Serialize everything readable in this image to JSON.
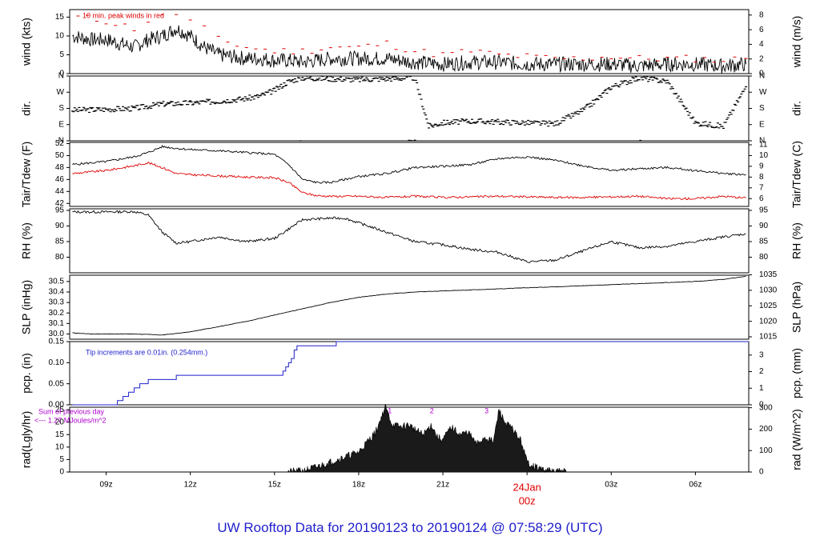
{
  "title": "UW Rooftop Data for 20190123  to  20190124 @ 07:58:29  (UTC)",
  "colors": {
    "black": "#000000",
    "red": "#dd0000",
    "blue": "#1f1fcc",
    "purple": "#b000d0",
    "title_blue": "#1f1fcc"
  },
  "x_axis": {
    "range_hours": [
      7.7,
      31.9
    ],
    "ticks": [
      {
        "hour": 9,
        "label": "09z"
      },
      {
        "hour": 12,
        "label": "12z"
      },
      {
        "hour": 15,
        "label": "15z"
      },
      {
        "hour": 18,
        "label": "18z"
      },
      {
        "hour": 21,
        "label": "21z"
      },
      {
        "hour": 24,
        "label": "00z"
      },
      {
        "hour": 27,
        "label": "03z"
      },
      {
        "hour": 30,
        "label": "06z"
      }
    ],
    "date_marker": {
      "hour": 24,
      "date_label": "24Jan",
      "time_label": "00z"
    }
  },
  "chart_data": [
    {
      "id": "wind",
      "type": "line",
      "ylabel_left": "wind (kts)",
      "ylabel_right": "wind (m/s)",
      "ylim": [
        0,
        17
      ],
      "left_ticks": [
        0,
        5,
        10,
        15
      ],
      "right_ticks": [
        0,
        2,
        4,
        6,
        8
      ],
      "right_scale": 0.5144,
      "annotation": "10 min. peak winds in red",
      "series": [
        {
          "role": "speed",
          "x": [
            7.8,
            8.5,
            9.0,
            9.5,
            10.0,
            10.5,
            11.0,
            11.5,
            12.0,
            12.5,
            13.0,
            13.5,
            14.0,
            14.5,
            15.0,
            15.5,
            16.0,
            17.0,
            18.0,
            19.0,
            20.0,
            21.0,
            22.0,
            23.0,
            24.0,
            25.0,
            26.0,
            27.0,
            28.0,
            29.0,
            30.0,
            31.0,
            31.8
          ],
          "values": [
            10,
            9,
            9,
            8,
            7,
            9,
            10,
            12,
            10,
            7,
            5,
            4.5,
            4,
            4,
            3.5,
            3.5,
            3,
            4,
            4,
            4,
            3,
            2.5,
            3,
            3,
            2.5,
            2.5,
            2.5,
            2.5,
            2,
            2.5,
            2.5,
            2,
            2.5
          ]
        },
        {
          "role": "peak",
          "x": [
            8.0,
            9.0,
            10.0,
            10.5,
            11.0,
            11.5,
            12.0,
            12.5,
            13.0,
            14.0,
            15.0,
            16.0,
            17.0,
            18.0,
            19.0,
            20.0,
            21.0,
            22.0,
            23.0,
            24.0,
            25.0,
            26.0,
            27.0,
            28.0,
            29.0,
            30.0,
            31.0,
            31.8
          ],
          "values": [
            15,
            14,
            12,
            14,
            15,
            16,
            14,
            12,
            9,
            7,
            6,
            6,
            7,
            7,
            8,
            6,
            5,
            6,
            5,
            4.5,
            4,
            4,
            4.5,
            4,
            4,
            4,
            3.5,
            4
          ]
        }
      ]
    },
    {
      "id": "dir",
      "type": "scatter",
      "ylabel_left": "dir.",
      "ylabel_right": "dir.",
      "ylim": [
        0,
        360
      ],
      "left_ticks": [
        {
          "v": 0,
          "label": "N"
        },
        {
          "v": 90,
          "label": "E"
        },
        {
          "v": 180,
          "label": "S"
        },
        {
          "v": 270,
          "label": "W"
        },
        {
          "v": 360,
          "label": "N"
        }
      ],
      "right_ticks": [
        {
          "v": 0,
          "label": "N"
        },
        {
          "v": 90,
          "label": "E"
        },
        {
          "v": 180,
          "label": "S"
        },
        {
          "v": 270,
          "label": "W"
        },
        {
          "v": 360,
          "label": "N"
        }
      ],
      "x": [
        7.8,
        9.0,
        10.0,
        11.0,
        12.0,
        13.0,
        14.0,
        14.5,
        15.0,
        15.5,
        16.0,
        17.0,
        18.0,
        19.0,
        20.0,
        20.5,
        21.0,
        22.0,
        23.0,
        24.0,
        25.0,
        26.0,
        26.5,
        27.0,
        28.0,
        29.0,
        30.0,
        31.0,
        31.8
      ],
      "values": [
        170,
        175,
        180,
        205,
        210,
        220,
        235,
        250,
        280,
        330,
        350,
        345,
        340,
        345,
        350,
        80,
        100,
        110,
        105,
        100,
        95,
        170,
        230,
        300,
        350,
        330,
        100,
        80,
        300
      ]
    },
    {
      "id": "temp",
      "type": "line",
      "ylabel_left": "Tair/Tdew (F)",
      "ylabel_right": "Tair/Tdew (C)",
      "ylim": [
        41.5,
        52.2
      ],
      "left_ticks": [
        42,
        44,
        46,
        48,
        50,
        52
      ],
      "right_ticks": [
        6,
        7,
        8,
        9,
        10,
        11
      ],
      "series": [
        {
          "role": "air",
          "x": [
            7.8,
            9.0,
            10.0,
            10.5,
            11.0,
            11.5,
            12.0,
            13.0,
            14.0,
            15.0,
            15.5,
            16.0,
            16.5,
            17.0,
            18.0,
            19.0,
            20.0,
            21.0,
            22.0,
            23.0,
            24.0,
            25.0,
            26.0,
            27.0,
            28.0,
            29.0,
            30.0,
            31.0,
            31.8
          ],
          "values": [
            48.5,
            49,
            49.8,
            50.5,
            51.5,
            51.2,
            51,
            50.8,
            50.5,
            50.2,
            48.5,
            46,
            45.5,
            45.5,
            46.5,
            47,
            48,
            48.2,
            48.5,
            49.5,
            49.8,
            49.2,
            48.3,
            47.5,
            47.8,
            48,
            47.5,
            47,
            46.8
          ]
        },
        {
          "role": "dew",
          "x": [
            7.8,
            9.0,
            10.0,
            10.5,
            11.0,
            11.5,
            12.0,
            13.0,
            14.0,
            15.0,
            15.5,
            16.0,
            16.5,
            17.0,
            18.0,
            19.0,
            20.0,
            21.0,
            22.0,
            23.0,
            24.0,
            25.0,
            26.0,
            27.0,
            28.0,
            29.0,
            30.0,
            31.0,
            31.8
          ],
          "values": [
            47,
            47.5,
            48.3,
            48.8,
            48,
            47,
            46.8,
            46.6,
            46.4,
            46.3,
            45.5,
            43.8,
            43.3,
            43.2,
            43.2,
            43,
            43.2,
            43,
            43.1,
            43.2,
            43.1,
            43,
            43,
            43.1,
            43.2,
            42.8,
            42.8,
            43.2,
            42.9
          ]
        }
      ]
    },
    {
      "id": "rh",
      "type": "line",
      "ylabel_left": "RH (%)",
      "ylabel_right": "RH (%)",
      "ylim": [
        75,
        95.5
      ],
      "left_ticks": [
        80,
        85,
        90,
        95
      ],
      "right_ticks": [
        80,
        85,
        90,
        95
      ],
      "x": [
        7.8,
        9.0,
        10.0,
        10.5,
        11.0,
        11.5,
        12.0,
        13.0,
        14.0,
        15.0,
        15.5,
        16.0,
        17.0,
        17.5,
        18.0,
        19.0,
        20.0,
        21.0,
        22.0,
        23.0,
        24.0,
        25.0,
        26.0,
        27.0,
        28.0,
        29.0,
        30.0,
        31.0,
        31.8
      ],
      "values": [
        94.5,
        94.5,
        94.6,
        93.5,
        88,
        84.5,
        85,
        86.5,
        85,
        86,
        89,
        92,
        92.5,
        92.5,
        91,
        88,
        85,
        84,
        82.5,
        81.5,
        78.5,
        79,
        82,
        85,
        83,
        83.5,
        85,
        86.5,
        87.5
      ]
    },
    {
      "id": "slp",
      "type": "line",
      "ylabel_left": "SLP (inHg)",
      "ylabel_right": "SLP (hPa)",
      "ylim": [
        29.95,
        30.56
      ],
      "left_ticks": [
        30.0,
        30.1,
        30.2,
        30.3,
        30.4,
        30.5
      ],
      "left_tick_labels": [
        "30.0",
        "30.1",
        "30.2",
        "30.3",
        "30.4",
        "30.5"
      ],
      "right_ticks": [
        1015,
        1020,
        1025,
        1030,
        1035
      ],
      "right_scale": 33.8639,
      "x": [
        7.8,
        8.5,
        9.0,
        10.0,
        11.0,
        12.0,
        13.0,
        14.0,
        15.0,
        16.0,
        17.0,
        18.0,
        19.0,
        20.0,
        21.0,
        22.0,
        23.0,
        24.0,
        25.0,
        26.0,
        27.0,
        28.0,
        29.0,
        30.0,
        31.0,
        31.8
      ],
      "values": [
        30.01,
        30.0,
        30.0,
        30.0,
        29.99,
        30.02,
        30.07,
        30.12,
        30.18,
        30.24,
        30.3,
        30.35,
        30.38,
        30.4,
        30.41,
        30.42,
        30.43,
        30.44,
        30.45,
        30.46,
        30.47,
        30.48,
        30.49,
        30.5,
        30.52,
        30.55
      ]
    },
    {
      "id": "pcp",
      "type": "step",
      "ylabel_left": "pcp. (in)",
      "ylabel_right": "pcp. (mm)",
      "ylim": [
        0,
        0.15
      ],
      "left_ticks": [
        0.0,
        0.05,
        0.1,
        0.15
      ],
      "left_tick_labels": [
        "0.00",
        "0.05",
        "0.10",
        "0.15"
      ],
      "right_ticks": [
        0,
        1,
        2,
        3
      ],
      "right_scale": 25.4,
      "annotation": "Tip increments are 0.01in. (0.254mm.)",
      "x": [
        7.8,
        9.4,
        9.6,
        9.8,
        10.0,
        10.2,
        10.5,
        11.5,
        15.3,
        15.4,
        15.5,
        15.6,
        15.7,
        15.8,
        17.2,
        31.9
      ],
      "values": [
        0.0,
        0.01,
        0.02,
        0.03,
        0.04,
        0.05,
        0.06,
        0.07,
        0.08,
        0.09,
        0.1,
        0.11,
        0.13,
        0.14,
        0.15,
        0.15
      ]
    },
    {
      "id": "rad",
      "type": "area",
      "ylabel_left": "rad(Lgly/hr)",
      "ylabel_right": "rad (W/m^2)",
      "ylim": [
        0,
        26
      ],
      "left_ticks": [
        0,
        5,
        10,
        15,
        20,
        25
      ],
      "right_ticks": [
        0,
        100,
        200,
        300
      ],
      "right_scale": 11.63,
      "annotation_lines": [
        "Sum of previous day",
        "<--- 1.27 MJoules/m^2"
      ],
      "markers": [
        {
          "hour": 18.95,
          "label": "1"
        },
        {
          "hour": 20.45,
          "label": "2"
        },
        {
          "hour": 22.4,
          "label": "3"
        }
      ],
      "x": [
        15.4,
        16.0,
        16.5,
        17.0,
        17.5,
        18.0,
        18.3,
        18.6,
        18.95,
        19.2,
        19.5,
        19.8,
        20.0,
        20.3,
        20.6,
        20.8,
        21.0,
        21.3,
        21.6,
        21.9,
        22.2,
        22.5,
        22.8,
        23.0,
        23.2,
        23.5,
        23.8,
        24.0,
        24.3,
        24.7,
        25.4
      ],
      "values": [
        0,
        0.5,
        2,
        4,
        6,
        8,
        12,
        16,
        26,
        19,
        18,
        19,
        17,
        15,
        19,
        14,
        13,
        18,
        15,
        16,
        11,
        14,
        12,
        25,
        20,
        17,
        12,
        4,
        2,
        0.5,
        0
      ]
    }
  ]
}
